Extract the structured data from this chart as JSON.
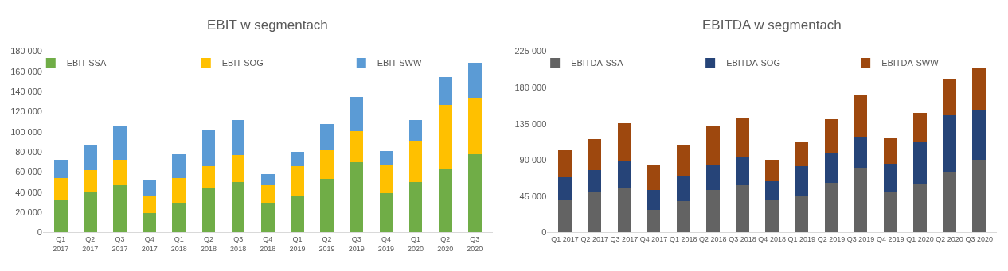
{
  "chart_data": [
    {
      "type": "bar",
      "title": "EBIT w segmentach",
      "stacked": true,
      "legend": "top",
      "grid": false,
      "categories": [
        "Q1\n2017",
        "Q2\n2017",
        "Q3\n2017",
        "Q4\n2017",
        "Q1\n2018",
        "Q2\n2018",
        "Q3\n2018",
        "Q4\n2018",
        "Q1\n2019",
        "Q2\n2019",
        "Q3\n2019",
        "Q4\n2019",
        "Q1\n2020",
        "Q2\n2020",
        "Q3\n2020"
      ],
      "ylim": [
        0,
        180000
      ],
      "yticks": [
        {
          "value": 0,
          "label": "0"
        },
        {
          "value": 20000,
          "label": "20 000"
        },
        {
          "value": 40000,
          "label": "40 000"
        },
        {
          "value": 60000,
          "label": "60 000"
        },
        {
          "value": 80000,
          "label": "80 000"
        },
        {
          "value": 100000,
          "label": "100 000"
        },
        {
          "value": 120000,
          "label": "120 000"
        },
        {
          "value": 140000,
          "label": "140 000"
        },
        {
          "value": 160000,
          "label": "160 000"
        },
        {
          "value": 180000,
          "label": "180 000"
        }
      ],
      "series": [
        {
          "name": "EBIT-SSA",
          "color": "#70ad47",
          "values": [
            32000,
            41000,
            47000,
            19000,
            30000,
            44000,
            50000,
            30000,
            37000,
            53000,
            70000,
            39000,
            50000,
            63000,
            78000
          ]
        },
        {
          "name": "EBIT-SOG",
          "color": "#ffc000",
          "values": [
            22000,
            21000,
            25000,
            18000,
            24000,
            22000,
            27000,
            17000,
            29000,
            29000,
            31000,
            28000,
            41000,
            64000,
            56000
          ]
        },
        {
          "name": "EBIT-SWW",
          "color": "#5b9bd5",
          "values": [
            18000,
            25000,
            34000,
            15000,
            24000,
            36000,
            35000,
            11000,
            14000,
            26000,
            34000,
            14000,
            21000,
            27000,
            35000
          ]
        }
      ]
    },
    {
      "type": "bar",
      "title": "EBITDA w segmentach",
      "stacked": true,
      "legend": "top",
      "grid": false,
      "categories": [
        "Q1 2017",
        "Q2 2017",
        "Q3 2017",
        "Q4 2017",
        "Q1 2018",
        "Q2 2018",
        "Q3 2018",
        "Q4 2018",
        "Q1 2019",
        "Q2 2019",
        "Q3 2019",
        "Q4 2019",
        "Q1 2020",
        "Q2 2020",
        "Q3 2020"
      ],
      "ylim": [
        0,
        225000
      ],
      "yticks": [
        {
          "value": 0,
          "label": "0"
        },
        {
          "value": 45000,
          "label": "45 000"
        },
        {
          "value": 90000,
          "label": "90 000"
        },
        {
          "value": 135000,
          "label": "135 000"
        },
        {
          "value": 180000,
          "label": "180 000"
        },
        {
          "value": 225000,
          "label": "225 000"
        }
      ],
      "series": [
        {
          "name": "EBITDA-SSA",
          "color": "#636363",
          "values": [
            40000,
            50000,
            55000,
            28000,
            39000,
            53000,
            59000,
            40000,
            46000,
            62000,
            80000,
            50000,
            61000,
            75000,
            90000
          ]
        },
        {
          "name": "EBITDA-SOG",
          "color": "#264478",
          "values": [
            29000,
            27000,
            33000,
            25000,
            31000,
            30000,
            35000,
            24000,
            36000,
            37000,
            39000,
            35000,
            51000,
            71000,
            63000
          ]
        },
        {
          "name": "EBITDA-SWW",
          "color": "#9e480e",
          "values": [
            33000,
            39000,
            48000,
            30000,
            38000,
            50000,
            49000,
            26000,
            30000,
            42000,
            51000,
            32000,
            37000,
            44000,
            52000
          ]
        }
      ]
    }
  ]
}
